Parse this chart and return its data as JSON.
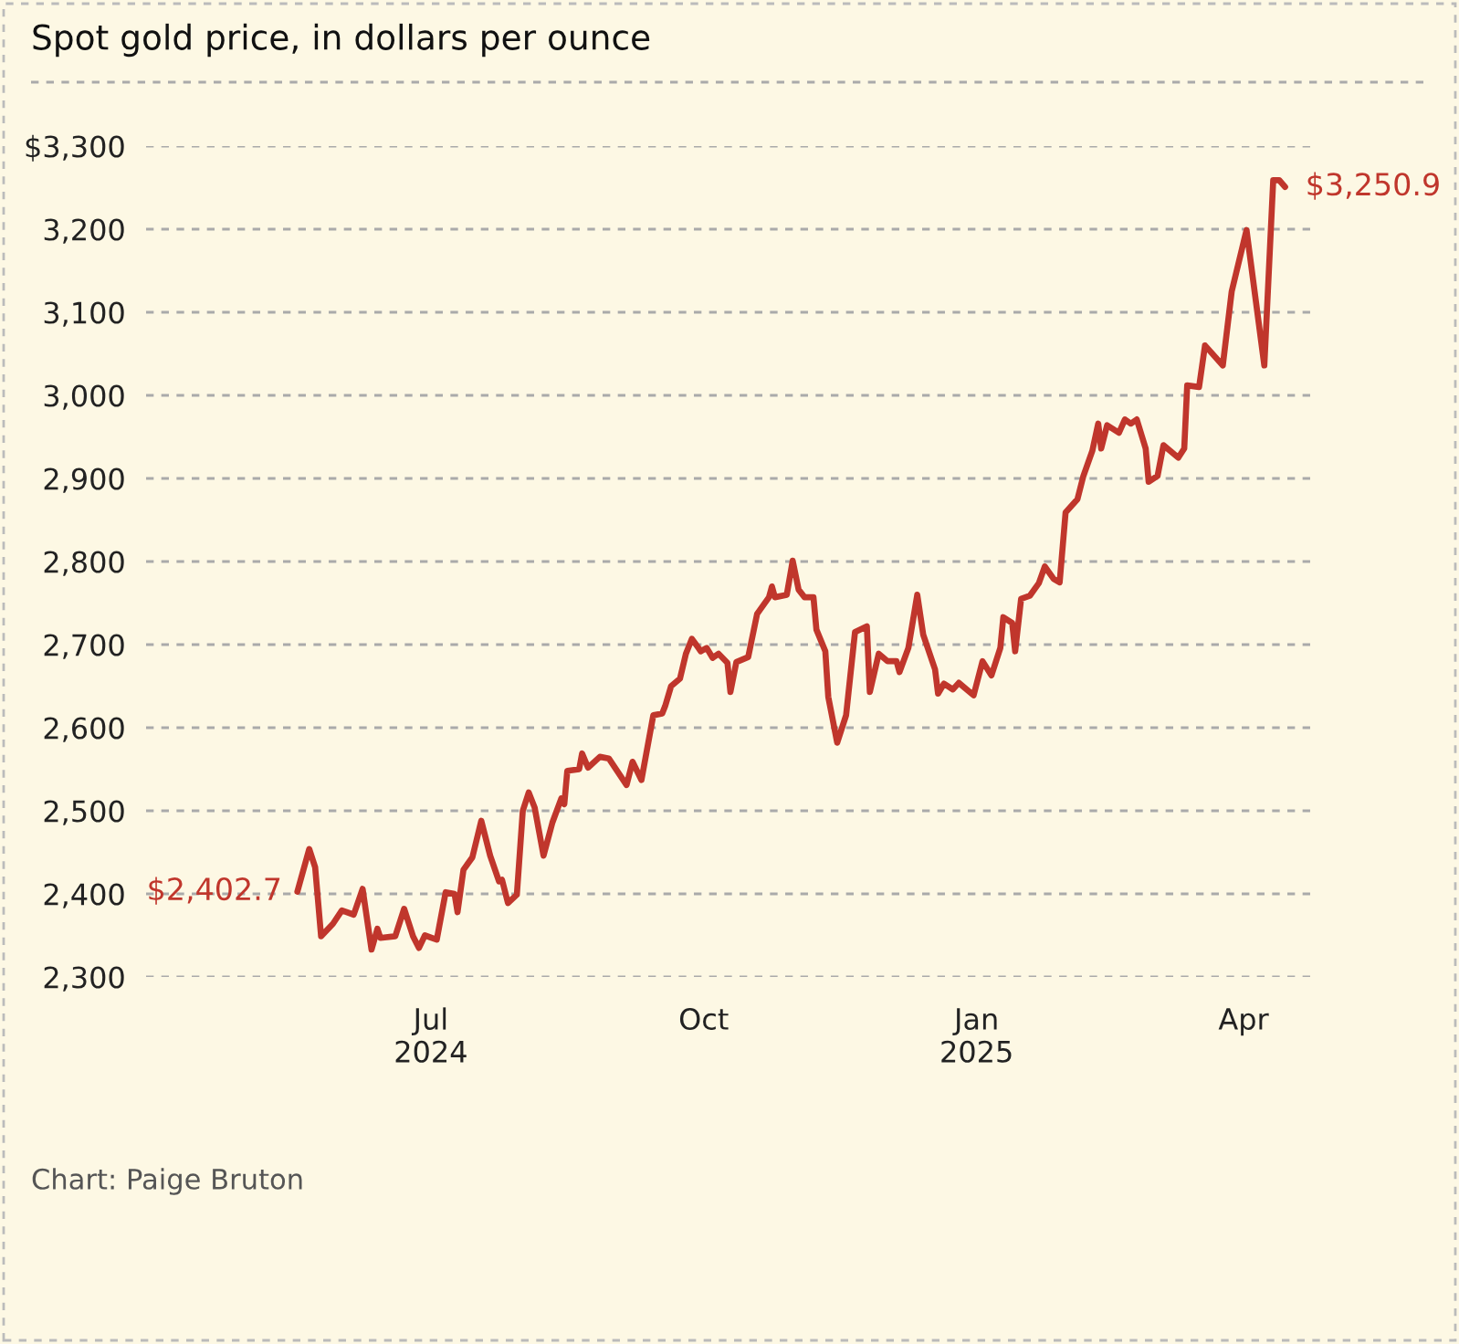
{
  "chart_data": {
    "type": "line",
    "title": "Spot gold price, in dollars per ounce",
    "x": [
      "2024-05-17",
      "2024-05-21",
      "2024-05-23",
      "2024-05-25",
      "2024-05-29",
      "2024-06-01",
      "2024-06-05",
      "2024-06-08",
      "2024-06-11",
      "2024-06-13",
      "2024-06-14",
      "2024-06-19",
      "2024-06-22",
      "2024-06-25",
      "2024-06-27",
      "2024-06-29",
      "2024-07-03",
      "2024-07-06",
      "2024-07-09",
      "2024-07-10",
      "2024-07-12",
      "2024-07-15",
      "2024-07-18",
      "2024-07-21",
      "2024-07-24",
      "2024-07-25",
      "2024-07-27",
      "2024-07-30",
      "2024-08-01",
      "2024-08-03",
      "2024-08-05",
      "2024-08-08",
      "2024-08-11",
      "2024-08-14",
      "2024-08-15",
      "2024-08-16",
      "2024-08-20",
      "2024-08-21",
      "2024-08-23",
      "2024-08-27",
      "2024-08-30",
      "2024-09-05",
      "2024-09-07",
      "2024-09-10",
      "2024-09-14",
      "2024-09-17",
      "2024-09-18",
      "2024-09-20",
      "2024-09-23",
      "2024-09-25",
      "2024-09-27",
      "2024-09-30",
      "2024-10-02",
      "2024-10-04",
      "2024-10-06",
      "2024-10-09",
      "2024-10-10",
      "2024-10-12",
      "2024-10-16",
      "2024-10-19",
      "2024-10-23",
      "2024-10-24",
      "2024-10-25",
      "2024-10-29",
      "2024-10-31",
      "2024-11-02",
      "2024-11-04",
      "2024-11-07",
      "2024-11-08",
      "2024-11-11",
      "2024-11-12",
      "2024-11-15",
      "2024-11-18",
      "2024-11-21",
      "2024-11-25",
      "2024-11-26",
      "2024-11-29",
      "2024-12-02",
      "2024-12-05",
      "2024-12-06",
      "2024-12-09",
      "2024-12-12",
      "2024-12-14",
      "2024-12-18",
      "2024-12-19",
      "2024-12-21",
      "2024-12-24",
      "2024-12-26",
      "2024-12-31",
      "2025-01-03",
      "2025-01-06",
      "2025-01-09",
      "2025-01-10",
      "2025-01-13",
      "2025-01-14",
      "2025-01-16",
      "2025-01-19",
      "2025-01-22",
      "2025-01-24",
      "2025-01-27",
      "2025-01-29",
      "2025-01-31",
      "2025-02-04",
      "2025-02-06",
      "2025-02-09",
      "2025-02-11",
      "2025-02-12",
      "2025-02-14",
      "2025-02-18",
      "2025-02-20",
      "2025-02-22",
      "2025-02-24",
      "2025-02-27",
      "2025-02-28",
      "2025-03-03",
      "2025-03-05",
      "2025-03-10",
      "2025-03-12",
      "2025-03-13",
      "2025-03-17",
      "2025-03-19",
      "2025-03-25",
      "2025-03-28",
      "2025-04-02",
      "2025-04-08",
      "2025-04-11",
      "2025-04-13",
      "2025-04-15"
    ],
    "series": [
      {
        "color": "#c0362c",
        "values": [
          2402.7,
          2454,
          2432,
          2349,
          2364,
          2380,
          2375,
          2406,
          2333,
          2358,
          2347,
          2349,
          2382,
          2349,
          2335,
          2350,
          2345,
          2402,
          2400,
          2378,
          2429,
          2444,
          2488,
          2446,
          2415,
          2417,
          2389,
          2399,
          2500,
          2522,
          2504,
          2446,
          2486,
          2515,
          2508,
          2548,
          2550,
          2569,
          2552,
          2565,
          2563,
          2531,
          2559,
          2537,
          2615,
          2617,
          2626,
          2650,
          2659,
          2689,
          2707,
          2692,
          2696,
          2684,
          2689,
          2678,
          2643,
          2679,
          2685,
          2737,
          2757,
          2770,
          2757,
          2760,
          2801,
          2766,
          2757,
          2757,
          2718,
          2692,
          2637,
          2582,
          2615,
          2715,
          2722,
          2643,
          2689,
          2680,
          2680,
          2667,
          2696,
          2760,
          2712,
          2670,
          2641,
          2653,
          2646,
          2654,
          2639,
          2680,
          2663,
          2696,
          2733,
          2726,
          2692,
          2755,
          2759,
          2774,
          2794,
          2779,
          2775,
          2859,
          2875,
          2903,
          2933,
          2966,
          2936,
          2964,
          2955,
          2971,
          2966,
          2971,
          2936,
          2896,
          2903,
          2940,
          2925,
          2936,
          3012,
          3010,
          3060,
          3036,
          3125,
          3199,
          3036,
          3259,
          3259,
          3250.9
        ]
      }
    ],
    "xlim": [
      "2024-03-27",
      "2025-04-25"
    ],
    "xticks": [
      {
        "value": "2024-07-01",
        "label": "Jul\n2024"
      },
      {
        "value": "2024-10-01",
        "label": "Oct"
      },
      {
        "value": "2025-01-01",
        "label": "Jan\n2025"
      },
      {
        "value": "2025-04-01",
        "label": "Apr"
      }
    ],
    "ylim": [
      2300,
      3300
    ],
    "yticks": [
      {
        "value": 2300,
        "label": "2,300"
      },
      {
        "value": 2400,
        "label": "2,400"
      },
      {
        "value": 2500,
        "label": "2,500"
      },
      {
        "value": 2600,
        "label": "2,600"
      },
      {
        "value": 2700,
        "label": "2,700"
      },
      {
        "value": 2800,
        "label": "2,800"
      },
      {
        "value": 2900,
        "label": "2,900"
      },
      {
        "value": 3000,
        "label": "3,000"
      },
      {
        "value": 3100,
        "label": "3,100"
      },
      {
        "value": 3200,
        "label": "3,200"
      },
      {
        "value": 3300,
        "label": "$3,300"
      }
    ],
    "grid": "y",
    "marker": "none",
    "line_style": "solid",
    "legend": false,
    "annotations": [
      {
        "text": "$2,402.7",
        "x": "2024-05-17",
        "y": 2402.7
      },
      {
        "text": "$3,250.9",
        "x": "2025-04-15",
        "y": 3250.9
      },
      "Chart: Paige Bruton"
    ]
  }
}
